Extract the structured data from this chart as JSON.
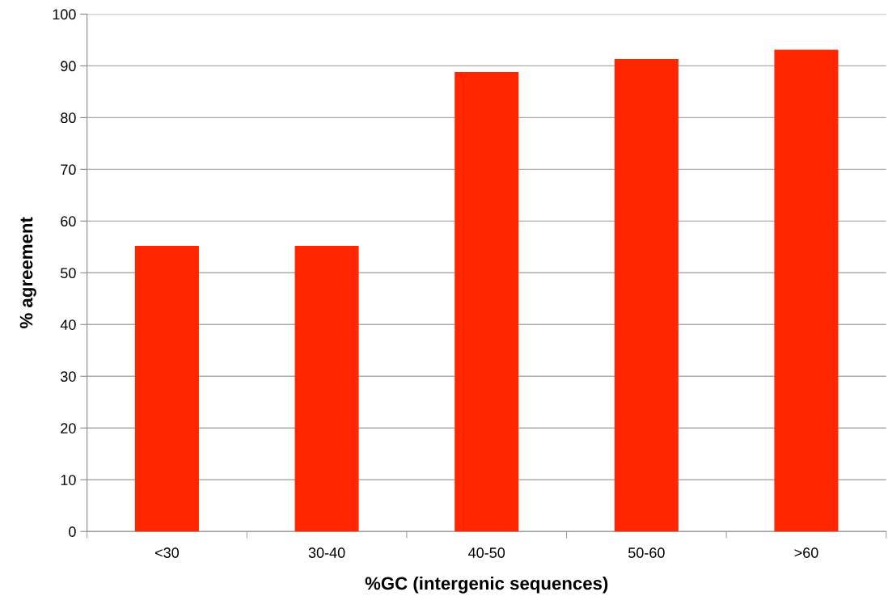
{
  "chart_data": {
    "type": "bar",
    "xlabel": "%GC (intergenic sequences)",
    "ylabel": "% agreement",
    "categories": [
      "<30",
      "30-40",
      "40-50",
      "50-60",
      ">60"
    ],
    "values": [
      55.2,
      55.2,
      88.8,
      91.3,
      93.1
    ],
    "color": "#ff2600",
    "ylim": [
      0,
      100
    ],
    "yticks": [
      0,
      10,
      20,
      30,
      40,
      50,
      60,
      70,
      80,
      90,
      100
    ],
    "grid": "y"
  }
}
